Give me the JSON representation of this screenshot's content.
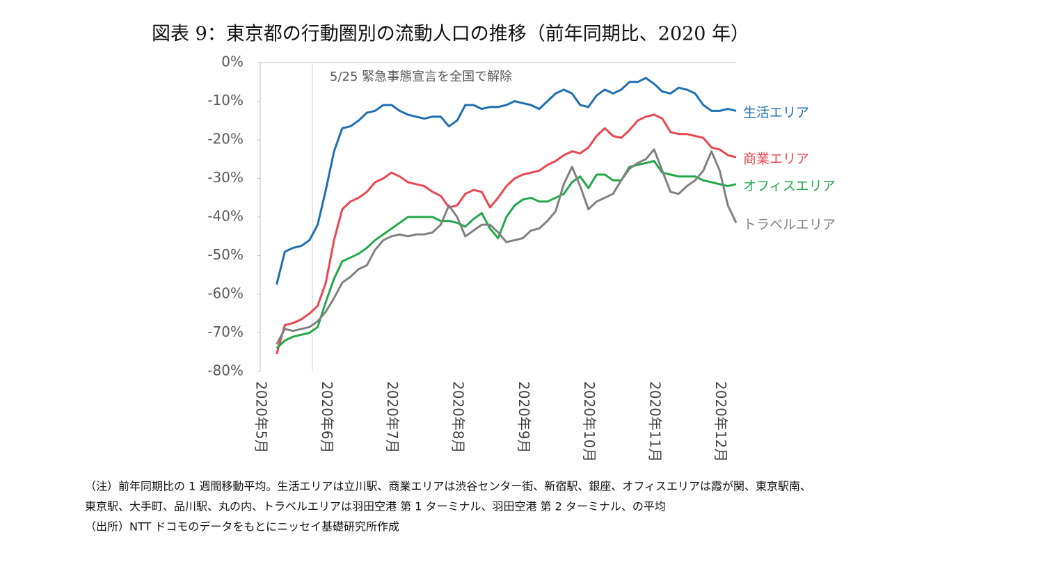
{
  "chart_data": {
    "type": "line",
    "title": "図表 9：東京都の行動圏別の流動人口の推移（前年同期比、2020 年）",
    "annotations": [
      "5/25 緊急事態宣言を全国で解除"
    ],
    "notes": [
      "（注）前年同期比の 1 週間移動平均。生活エリアは立川駅、商業エリアは渋谷センター街、新宿駅、銀座、オフィスエリアは霞が関、東京駅南、",
      "東京駅、大手町、品川駅、丸の内、トラベルエリアは羽田空港 第 1 ターミナル、羽田空港 第 2 ターミナル、の平均",
      "（出所）NTT ドコモのデータをもとにニッセイ基礎研究所作成"
    ],
    "categories": [
      "2020年5月",
      null,
      null,
      null,
      null,
      null,
      null,
      null,
      "2020年6月",
      null,
      null,
      null,
      null,
      null,
      null,
      null,
      "2020年7月",
      null,
      null,
      null,
      null,
      null,
      null,
      null,
      "2020年8月",
      null,
      null,
      null,
      null,
      null,
      null,
      null,
      "2020年9月",
      null,
      null,
      null,
      null,
      null,
      null,
      null,
      "2020年10月",
      null,
      null,
      null,
      null,
      null,
      null,
      null,
      "2020年11月",
      null,
      null,
      null,
      null,
      null,
      null,
      null,
      "2020年12月",
      null,
      null
    ],
    "ylim": [
      -80,
      0
    ],
    "yticks": [
      {
        "value": 0,
        "label": "0%"
      },
      {
        "value": -10,
        "label": "-10%"
      },
      {
        "value": -20,
        "label": "-20%"
      },
      {
        "value": -30,
        "label": "-30%"
      },
      {
        "value": -40,
        "label": "-40%"
      },
      {
        "value": -50,
        "label": "-50%"
      },
      {
        "value": -60,
        "label": "-60%"
      },
      {
        "value": -70,
        "label": "-70%"
      },
      {
        "value": -80,
        "label": "-80%"
      }
    ],
    "series": [
      {
        "name": "生活エリア",
        "color": "#1f6fb0",
        "values": [
          null,
          null,
          -57.5,
          -49,
          -48,
          -47.5,
          -46,
          -42,
          -33,
          -23,
          -17,
          -16.5,
          -15,
          -13,
          -12.5,
          -11,
          -11,
          -12.5,
          -13.5,
          -14,
          -14.5,
          -14,
          -14,
          -16.5,
          -15,
          -11,
          -11,
          -12,
          -11.5,
          -11.5,
          -11,
          -10,
          -10.5,
          -11,
          -12,
          -10,
          -8,
          -7,
          -8,
          -11,
          -11.5,
          -8.5,
          -7,
          -8,
          -7,
          -5,
          -5,
          -4,
          -5.5,
          -7.5,
          -8,
          -6.5,
          -7,
          -8,
          -11,
          -12.5,
          -12.5,
          -12,
          -12.5
        ]
      },
      {
        "name": "商業エリア",
        "color": "#e8474f",
        "values": [
          null,
          null,
          -75.5,
          -68,
          -67.5,
          -66.5,
          -65,
          -63,
          -57,
          -46,
          -38,
          -36,
          -35,
          -33.5,
          -31,
          -30,
          -28.5,
          -29.5,
          -31,
          -31.5,
          -32,
          -33.5,
          -34.5,
          -37.5,
          -37,
          -34,
          -33,
          -33.5,
          -37.5,
          -35,
          -32,
          -30,
          -29,
          -28.5,
          -28,
          -26.5,
          -25.5,
          -24,
          -23,
          -23.5,
          -22,
          -19,
          -17,
          -19,
          -19.5,
          -17.5,
          -15,
          -14,
          -13.5,
          -14.5,
          -18,
          -18.5,
          -18.5,
          -19,
          -19.5,
          -22,
          -22.5,
          -24,
          -24.5
        ]
      },
      {
        "name": "オフィスエリア",
        "color": "#22a84b",
        "values": [
          null,
          null,
          -74,
          -72,
          -71,
          -70.5,
          -70,
          -68.5,
          -62,
          -56,
          -51.5,
          -50.5,
          -49.5,
          -48,
          -46,
          -44.5,
          -43,
          -41.5,
          -40,
          -40,
          -40,
          -40,
          -41,
          -41,
          -41.5,
          -42.5,
          -40.5,
          -39,
          -43,
          -45.5,
          -40,
          -37,
          -35.5,
          -35,
          -36,
          -36,
          -35,
          -34,
          -31,
          -29.5,
          -32.5,
          -29,
          -29,
          -30.5,
          -30.5,
          -27,
          -26.5,
          -26,
          -25.5,
          -28.5,
          -29,
          -29.5,
          -29.5,
          -29.5,
          -30.5,
          -31,
          -31.5,
          -32,
          -31.5
        ]
      },
      {
        "name": "トラベルエリア",
        "color": "#808080",
        "values": [
          null,
          null,
          -73,
          -69,
          -69.5,
          -69,
          -68.5,
          -67,
          -64.5,
          -61,
          -57,
          -55.5,
          -53.5,
          -52.5,
          -48.5,
          -46,
          -45,
          -44.5,
          -45,
          -44.5,
          -44.5,
          -44,
          -42,
          -37,
          -40,
          -45,
          -43.5,
          -42,
          -42,
          -44,
          -46.5,
          -46,
          -45.5,
          -43.5,
          -43,
          -41,
          -38.5,
          -31.5,
          -27,
          -32,
          -38,
          -36,
          -35,
          -34,
          -30.5,
          -27.5,
          -26,
          -25,
          -22.5,
          -28,
          -33.5,
          -34,
          -32,
          -30.5,
          -28,
          -23,
          -28,
          -37,
          -41.5
        ]
      }
    ]
  }
}
